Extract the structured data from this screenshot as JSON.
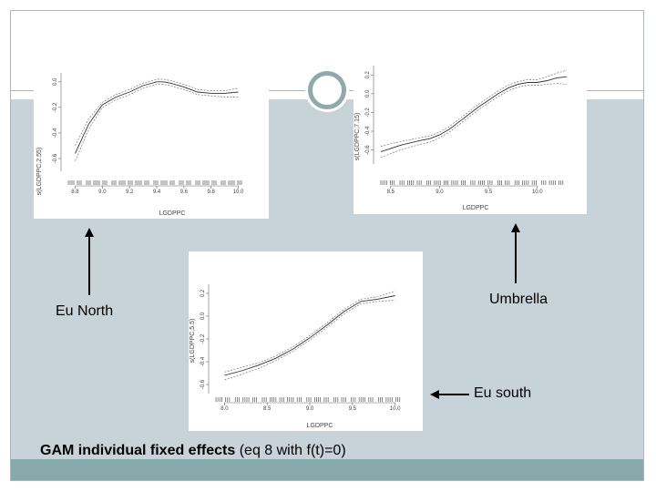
{
  "slide": {
    "labels": {
      "eu_north": "Eu North",
      "umbrella": "Umbrella",
      "eu_south": "Eu south"
    },
    "caption": {
      "bold": "GAM individual fixed effects",
      "rest": " (eq 8 with f(t)=0)"
    },
    "colors": {
      "lower_band": "#c7d3d9",
      "bottom_strip": "#88a9ab",
      "ornament": "#8fa9ac"
    }
  },
  "chart_data": [
    {
      "type": "line",
      "panel": "Eu North",
      "xlabel": "LGDPPC",
      "ylabel": "s(LGDPPC,2.55)",
      "x_ticks": [
        "8.8",
        "9.0",
        "9.2",
        "9.4",
        "9.6",
        "9.8",
        "10.0"
      ],
      "y_ticks": [
        "-0.6",
        "-0.4",
        "-0.2",
        "0.0"
      ],
      "xlim": [
        8.75,
        10.05
      ],
      "ylim": [
        -0.7,
        0.07
      ],
      "x": [
        8.8,
        8.9,
        9.0,
        9.1,
        9.2,
        9.3,
        9.4,
        9.45,
        9.5,
        9.6,
        9.7,
        9.8,
        9.9,
        10.0
      ],
      "series": [
        {
          "values": [
            -0.56,
            -0.33,
            -0.18,
            -0.12,
            -0.08,
            -0.03,
            0.0,
            0.0,
            -0.01,
            -0.04,
            -0.08,
            -0.09,
            -0.09,
            -0.08
          ]
        },
        {
          "values": [
            -0.5,
            -0.29,
            -0.16,
            -0.1,
            -0.06,
            -0.01,
            0.02,
            0.02,
            0.01,
            -0.02,
            -0.06,
            -0.07,
            -0.07,
            -0.05
          ]
        },
        {
          "values": [
            -0.62,
            -0.37,
            -0.2,
            -0.14,
            -0.1,
            -0.05,
            -0.02,
            -0.02,
            -0.03,
            -0.06,
            -0.1,
            -0.11,
            -0.12,
            -0.12
          ]
        }
      ]
    },
    {
      "type": "line",
      "panel": "Umbrella",
      "xlabel": "LGDPPC",
      "ylabel": "s(LGDPPC,7.15)",
      "x_ticks": [
        "8.5",
        "9.0",
        "9.5",
        "10.0"
      ],
      "y_ticks": [
        "-0.6",
        "-0.4",
        "-0.2",
        "0.0",
        "0.2"
      ],
      "xlim": [
        8.4,
        10.3
      ],
      "ylim": [
        -0.75,
        0.3
      ],
      "x": [
        8.4,
        8.6,
        8.8,
        8.9,
        9.0,
        9.1,
        9.2,
        9.3,
        9.4,
        9.5,
        9.6,
        9.7,
        9.8,
        9.9,
        10.0,
        10.1,
        10.2,
        10.3
      ],
      "series": [
        {
          "values": [
            -0.62,
            -0.55,
            -0.5,
            -0.48,
            -0.44,
            -0.38,
            -0.3,
            -0.22,
            -0.14,
            -0.07,
            0.0,
            0.06,
            0.1,
            0.12,
            0.12,
            0.14,
            0.17,
            0.18
          ]
        },
        {
          "values": [
            -0.56,
            -0.51,
            -0.47,
            -0.45,
            -0.41,
            -0.35,
            -0.27,
            -0.19,
            -0.11,
            -0.04,
            0.03,
            0.09,
            0.13,
            0.15,
            0.15,
            0.18,
            0.22,
            0.25
          ]
        },
        {
          "values": [
            -0.68,
            -0.6,
            -0.54,
            -0.52,
            -0.47,
            -0.41,
            -0.33,
            -0.25,
            -0.17,
            -0.1,
            -0.03,
            0.03,
            0.07,
            0.09,
            0.09,
            0.1,
            0.11,
            0.1
          ]
        }
      ]
    },
    {
      "type": "line",
      "panel": "Eu south",
      "xlabel": "LGDPPC",
      "ylabel": "s(LGDPPC,5.5)",
      "x_ticks": [
        "8.0",
        "8.5",
        "9.0",
        "9.5",
        "10.0"
      ],
      "y_ticks": [
        "-0.6",
        "-0.4",
        "-0.2",
        "0.0",
        "0.2"
      ],
      "xlim": [
        7.9,
        10.1
      ],
      "ylim": [
        -0.68,
        0.28
      ],
      "x": [
        8.0,
        8.2,
        8.4,
        8.6,
        8.8,
        9.0,
        9.2,
        9.4,
        9.6,
        9.8,
        10.0
      ],
      "series": [
        {
          "values": [
            -0.52,
            -0.48,
            -0.43,
            -0.37,
            -0.29,
            -0.19,
            -0.08,
            0.04,
            0.13,
            0.15,
            0.18
          ]
        },
        {
          "values": [
            -0.49,
            -0.45,
            -0.41,
            -0.35,
            -0.27,
            -0.17,
            -0.06,
            0.06,
            0.15,
            0.17,
            0.22
          ]
        },
        {
          "values": [
            -0.56,
            -0.51,
            -0.46,
            -0.39,
            -0.31,
            -0.21,
            -0.1,
            0.02,
            0.11,
            0.13,
            0.14
          ]
        }
      ]
    }
  ]
}
